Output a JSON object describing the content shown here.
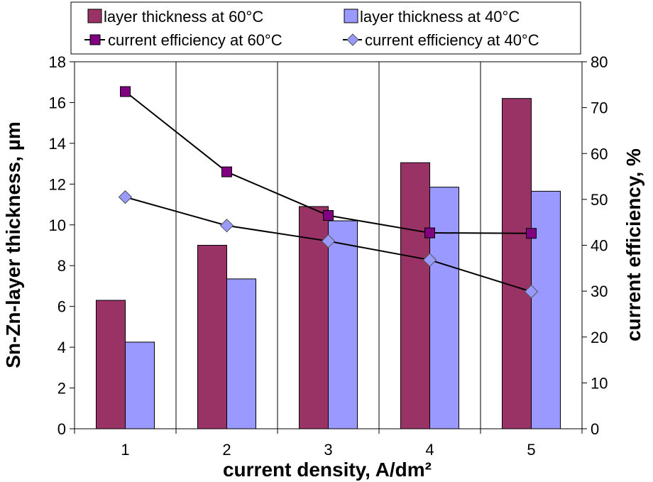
{
  "chart_data": {
    "type": "bar",
    "categories": [
      "1",
      "2",
      "3",
      "4",
      "5"
    ],
    "series": [
      {
        "name": "layer thickness at 60°C",
        "kind": "bar",
        "axis": "left",
        "color": "#993366",
        "values": [
          6.3,
          9.0,
          10.9,
          13.05,
          16.2
        ]
      },
      {
        "name": "layer thickness at 40°C",
        "kind": "bar",
        "axis": "left",
        "color": "#9999ff",
        "values": [
          4.25,
          7.35,
          10.2,
          11.85,
          11.65
        ]
      },
      {
        "name": "current efficiency at 60°C",
        "kind": "line",
        "axis": "right",
        "color": "#800080",
        "marker": "square",
        "values": [
          73.5,
          56.0,
          46.5,
          42.7,
          42.6
        ]
      },
      {
        "name": "current efficiency at 40°C",
        "kind": "line",
        "axis": "right",
        "color": "#9999ff",
        "marker": "diamond",
        "values": [
          50.5,
          44.3,
          40.9,
          36.8,
          29.9
        ]
      }
    ],
    "xlabel": "current density, A/dm²",
    "ylabel": "Sn-Zn-layer thickness, µm",
    "y2label": "current efficiency, %",
    "ylim": [
      0,
      18
    ],
    "y2lim": [
      0,
      80
    ],
    "yticks": [
      "0",
      "2",
      "4",
      "6",
      "8",
      "10",
      "12",
      "14",
      "16",
      "18"
    ],
    "y2ticks": [
      "0",
      "10",
      "20",
      "30",
      "40",
      "50",
      "60",
      "70",
      "80"
    ],
    "grid": "vertical category separators",
    "legend": "top"
  }
}
